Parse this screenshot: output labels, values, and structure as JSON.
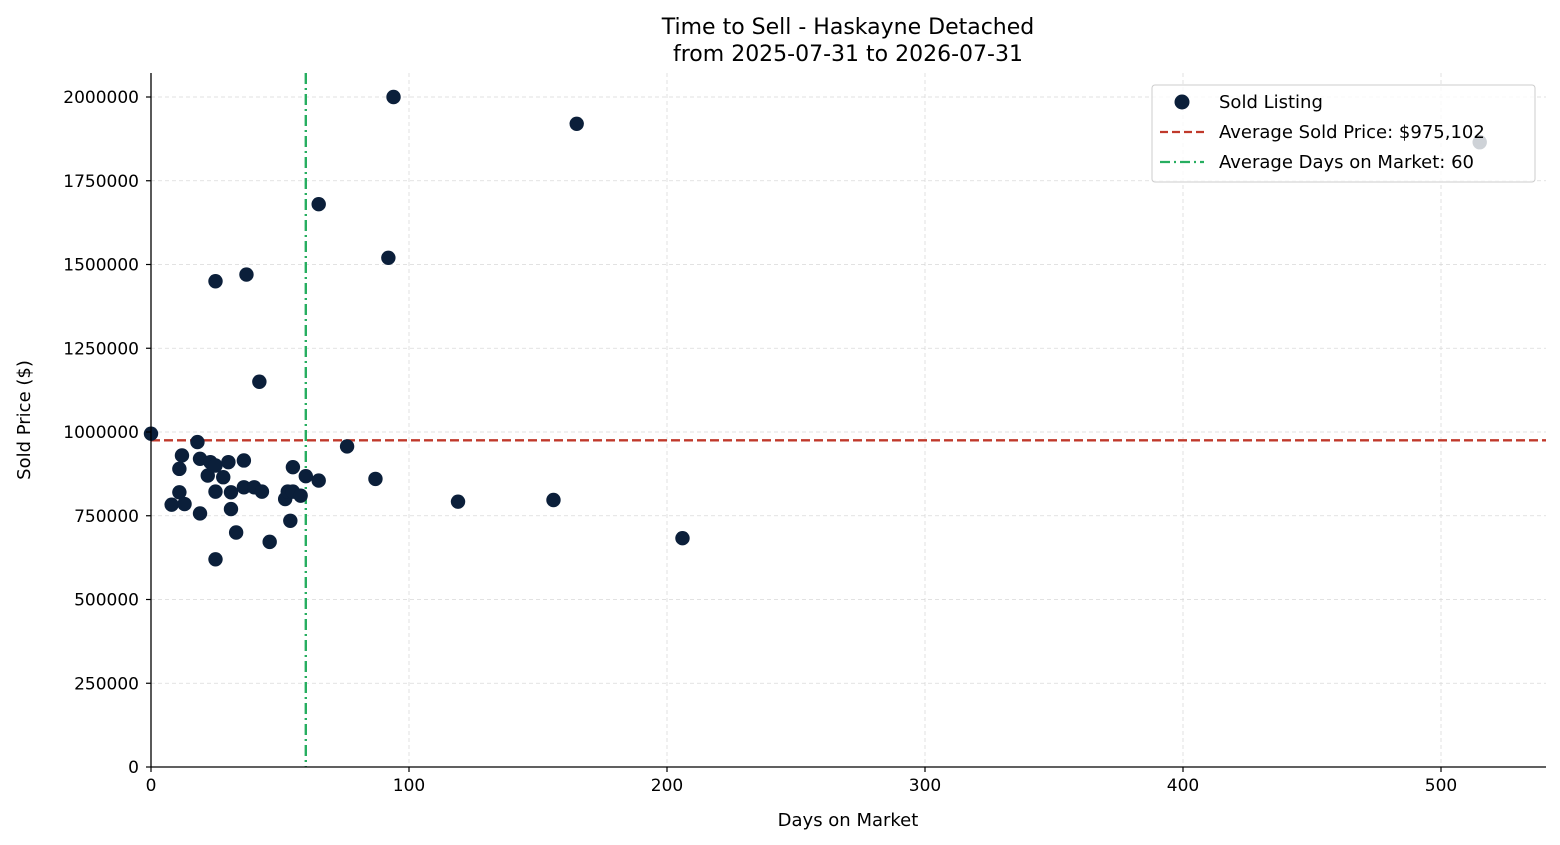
{
  "chart_data": {
    "type": "scatter",
    "title": [
      "Time to Sell - Haskayne Detached",
      "from 2025-07-31 to 2026-07-31"
    ],
    "xlabel": "Days on Market",
    "ylabel": "Sold Price ($)",
    "xlim": [
      0,
      540
    ],
    "ylim": [
      0,
      2070000
    ],
    "xticks": [
      0,
      100,
      200,
      300,
      400,
      500
    ],
    "yticks": [
      0,
      250000,
      500000,
      750000,
      1000000,
      1250000,
      1500000,
      1750000,
      2000000
    ],
    "grid": true,
    "legend_position": "top-right",
    "colors": {
      "points": "#0b1f3a",
      "avg_price_line": "#c0392b",
      "avg_days_line": "#27ae60"
    },
    "series": [
      {
        "name": "Sold Listing",
        "points": [
          [
            0,
            995000
          ],
          [
            8,
            783000
          ],
          [
            11,
            890000
          ],
          [
            11,
            820000
          ],
          [
            12,
            930000
          ],
          [
            13,
            785000
          ],
          [
            18,
            970000
          ],
          [
            19,
            920000
          ],
          [
            19,
            757000
          ],
          [
            22,
            870000
          ],
          [
            23,
            910000
          ],
          [
            25,
            900000
          ],
          [
            25,
            822000
          ],
          [
            25,
            620000
          ],
          [
            25,
            1450000
          ],
          [
            28,
            865000
          ],
          [
            30,
            910000
          ],
          [
            31,
            820000
          ],
          [
            31,
            770000
          ],
          [
            33,
            700000
          ],
          [
            36,
            915000
          ],
          [
            36,
            835000
          ],
          [
            37,
            1470000
          ],
          [
            40,
            835000
          ],
          [
            42,
            1150000
          ],
          [
            43,
            822000
          ],
          [
            46,
            672000
          ],
          [
            52,
            800000
          ],
          [
            53,
            822000
          ],
          [
            54,
            735000
          ],
          [
            55,
            895000
          ],
          [
            55,
            822000
          ],
          [
            58,
            810000
          ],
          [
            60,
            868000
          ],
          [
            65,
            855000
          ],
          [
            65,
            1680000
          ],
          [
            76,
            957000
          ],
          [
            87,
            860000
          ],
          [
            92,
            1520000
          ],
          [
            94,
            2000000
          ],
          [
            119,
            792000
          ],
          [
            156,
            797000
          ],
          [
            165,
            1920000
          ],
          [
            206,
            683000
          ],
          [
            515,
            1865000
          ]
        ]
      }
    ],
    "reference_lines": [
      {
        "name": "Average Sold Price: $975,102",
        "orientation": "horizontal",
        "value": 975102
      },
      {
        "name": "Average Days on Market: 60",
        "orientation": "vertical",
        "value": 60
      }
    ]
  }
}
